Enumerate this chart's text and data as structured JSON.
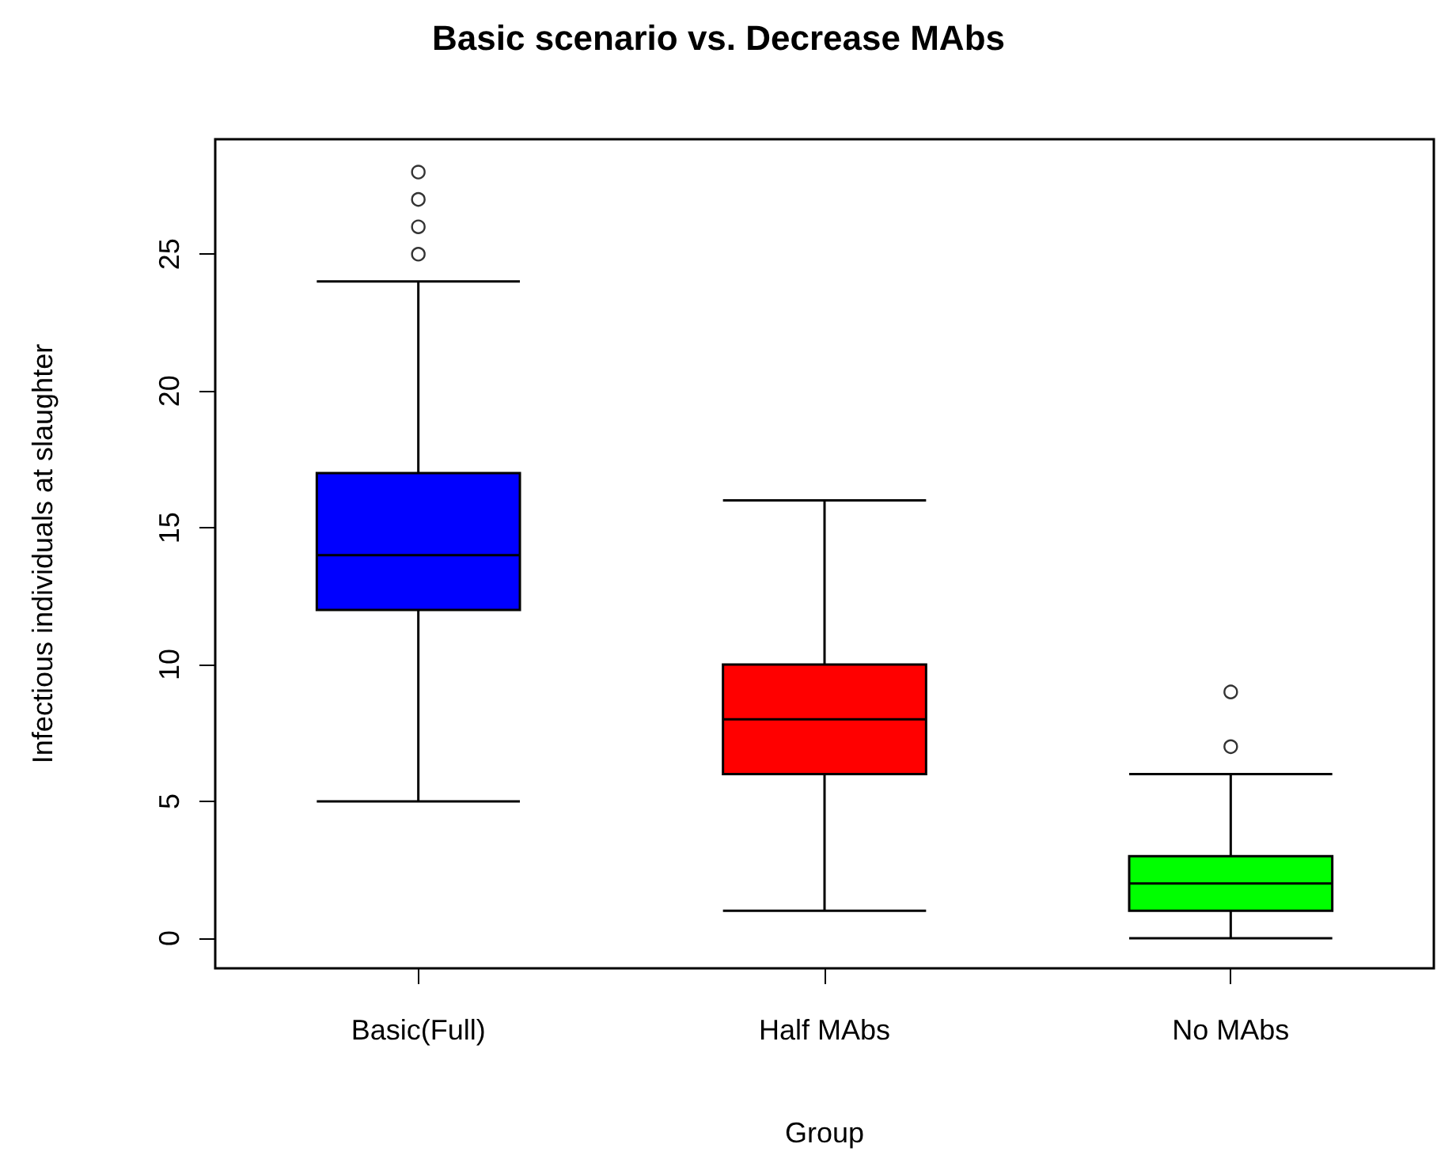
{
  "chart_data": {
    "type": "box",
    "title": "Basic scenario vs. Decrease MAbs",
    "xlabel": "Group",
    "ylabel": "Infectious individuals at slaughter",
    "categories": [
      "Basic(Full)",
      "Half MAbs",
      "No MAbs"
    ],
    "boxes": [
      {
        "low": 5,
        "q1": 12,
        "median": 14,
        "q3": 17,
        "high": 24,
        "outliers": [
          25,
          26,
          27,
          28
        ]
      },
      {
        "low": 1,
        "q1": 6,
        "median": 8,
        "q3": 10,
        "high": 16
      },
      {
        "low": 0,
        "q1": 1,
        "median": 2,
        "q3": 3,
        "high": 6,
        "outliers": [
          7,
          9
        ]
      }
    ],
    "colors": [
      "#0000ff",
      "#ff0000",
      "#00ff00"
    ],
    "ylim": [
      -1.1,
      29.2
    ],
    "yticks": [
      0,
      5,
      10,
      15,
      20,
      25
    ],
    "grid": false
  }
}
